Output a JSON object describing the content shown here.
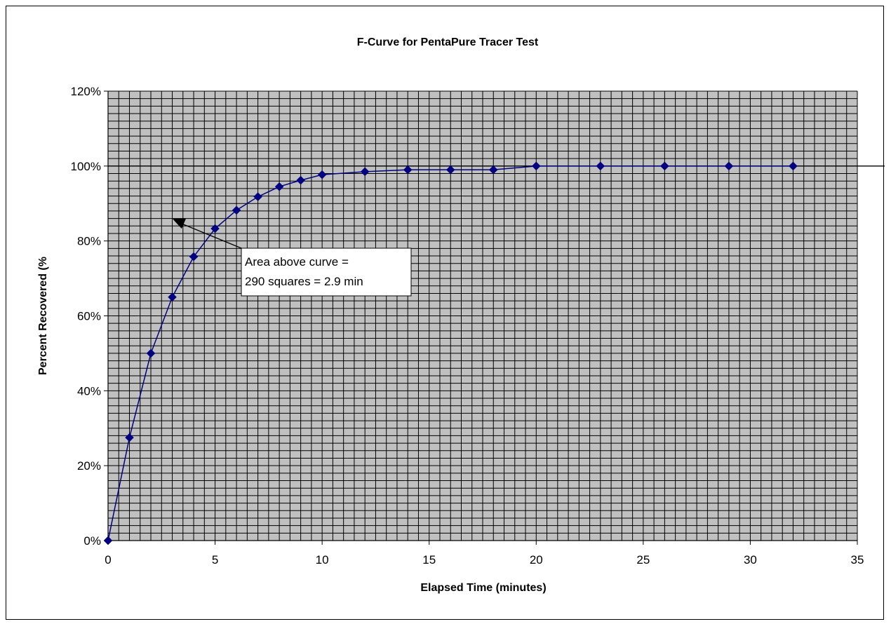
{
  "chart_data": {
    "type": "line",
    "title": "F-Curve for PentaPure Tracer Test",
    "xlabel": "Elapsed Time (minutes)",
    "ylabel": "Percent Recovered (%",
    "xlim": [
      0,
      35
    ],
    "ylim": [
      0,
      1.2
    ],
    "x_ticks": [
      "0",
      "5",
      "10",
      "15",
      "20",
      "25",
      "30",
      "35"
    ],
    "y_ticks": [
      "0%",
      "20%",
      "40%",
      "60%",
      "80%",
      "100%",
      "120%"
    ],
    "grid": true,
    "legend": "none",
    "series": [
      {
        "x": [
          0,
          1,
          2,
          3,
          4,
          5,
          6,
          7,
          8,
          9,
          10,
          12,
          14,
          16,
          18,
          20,
          23,
          26,
          29,
          32
        ],
        "y": [
          0,
          0.275,
          0.5,
          0.65,
          0.758,
          0.833,
          0.882,
          0.918,
          0.945,
          0.962,
          0.977,
          0.985,
          0.99,
          0.99,
          0.99,
          1.0,
          1.0,
          1.0,
          1.0,
          1.0
        ],
        "color": "#000080",
        "marker": "diamond"
      }
    ],
    "reference_line": {
      "y": 1.0,
      "color": "#000000"
    },
    "annotation": {
      "lines": [
        "Area above curve =",
        "290 squares = 2.9 min"
      ],
      "arrow_to": {
        "x": 3.0,
        "y": 0.86
      }
    },
    "colors": {
      "plot_background": "#c0c0c0",
      "grid": "#000000",
      "series": "#000080"
    }
  }
}
